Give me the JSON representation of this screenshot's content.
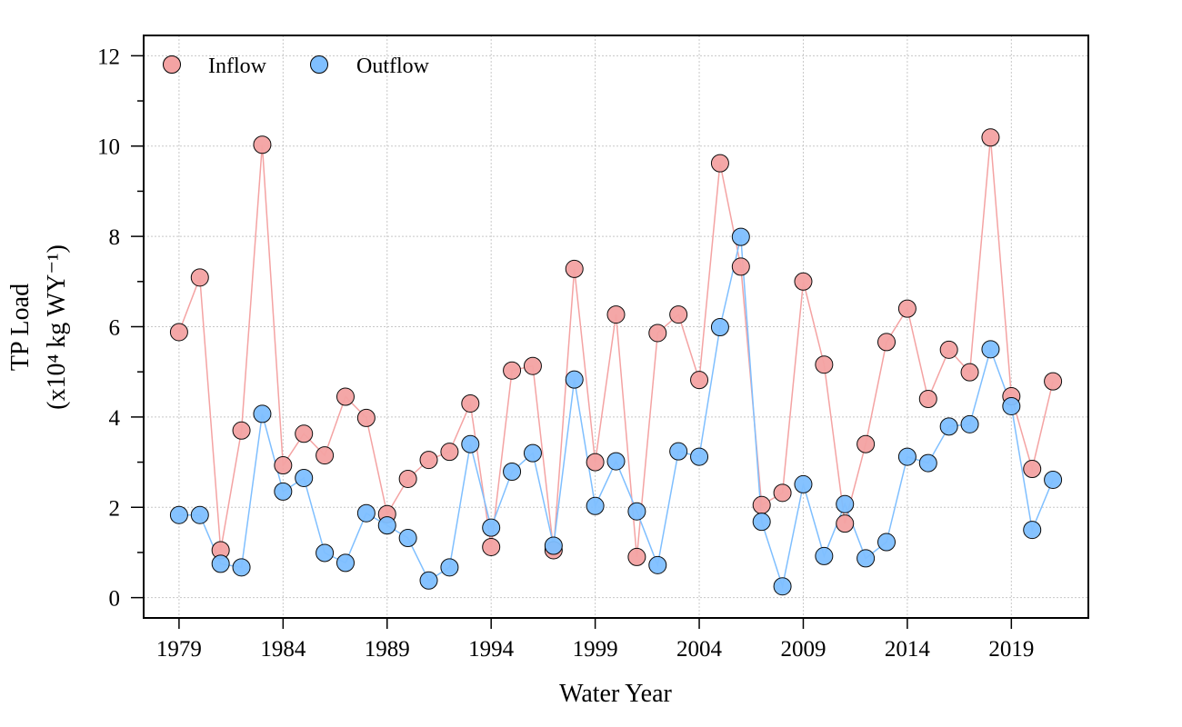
{
  "chart_data": {
    "type": "line",
    "xlabel": "Water Year",
    "ylabel_line1": "TP Load",
    "ylabel_line2": "(x10⁴ kg WY⁻¹)",
    "xlim": [
      1977.3,
      2022.7
    ],
    "ylim": [
      -0.45,
      12.45
    ],
    "x_ticks": [
      1979,
      1984,
      1989,
      1994,
      1999,
      2004,
      2009,
      2014,
      2019
    ],
    "y_ticks": [
      0,
      2,
      4,
      6,
      8,
      10,
      12
    ],
    "y_minor_ticks": [
      1,
      3,
      5,
      7,
      9,
      11
    ],
    "grid": true,
    "legend_position": "top-left",
    "x": [
      1979,
      1980,
      1981,
      1982,
      1983,
      1984,
      1985,
      1986,
      1987,
      1988,
      1989,
      1990,
      1991,
      1992,
      1993,
      1994,
      1995,
      1996,
      1997,
      1998,
      1999,
      2000,
      2001,
      2002,
      2003,
      2004,
      2005,
      2006,
      2007,
      2008,
      2009,
      2010,
      2011,
      2012,
      2013,
      2014,
      2015,
      2016,
      2017,
      2018,
      2019,
      2020,
      2021
    ],
    "series": [
      {
        "name": "Inflow",
        "color": "#f4a3a3",
        "values": [
          5.88,
          7.09,
          1.05,
          3.7,
          10.03,
          2.93,
          3.63,
          3.15,
          4.45,
          3.98,
          1.85,
          2.63,
          3.05,
          3.23,
          4.3,
          1.12,
          5.03,
          5.13,
          1.05,
          7.28,
          3.0,
          6.27,
          0.9,
          5.86,
          6.27,
          4.82,
          9.62,
          7.33,
          2.05,
          2.32,
          7.0,
          5.16,
          1.64,
          3.4,
          5.66,
          6.4,
          4.4,
          5.49,
          4.99,
          10.19,
          4.46,
          2.85,
          4.79
        ]
      },
      {
        "name": "Outflow",
        "color": "#7fbfff",
        "values": [
          1.83,
          1.83,
          0.75,
          0.67,
          4.07,
          2.35,
          2.65,
          0.99,
          0.77,
          1.87,
          1.6,
          1.32,
          0.38,
          0.67,
          3.4,
          1.55,
          2.79,
          3.2,
          1.15,
          4.83,
          2.03,
          3.02,
          1.91,
          0.72,
          3.24,
          3.12,
          5.99,
          7.99,
          1.68,
          0.25,
          2.51,
          0.92,
          2.07,
          0.87,
          1.23,
          3.12,
          2.98,
          3.79,
          3.84,
          5.5,
          4.24,
          1.5,
          2.61
        ]
      }
    ]
  }
}
